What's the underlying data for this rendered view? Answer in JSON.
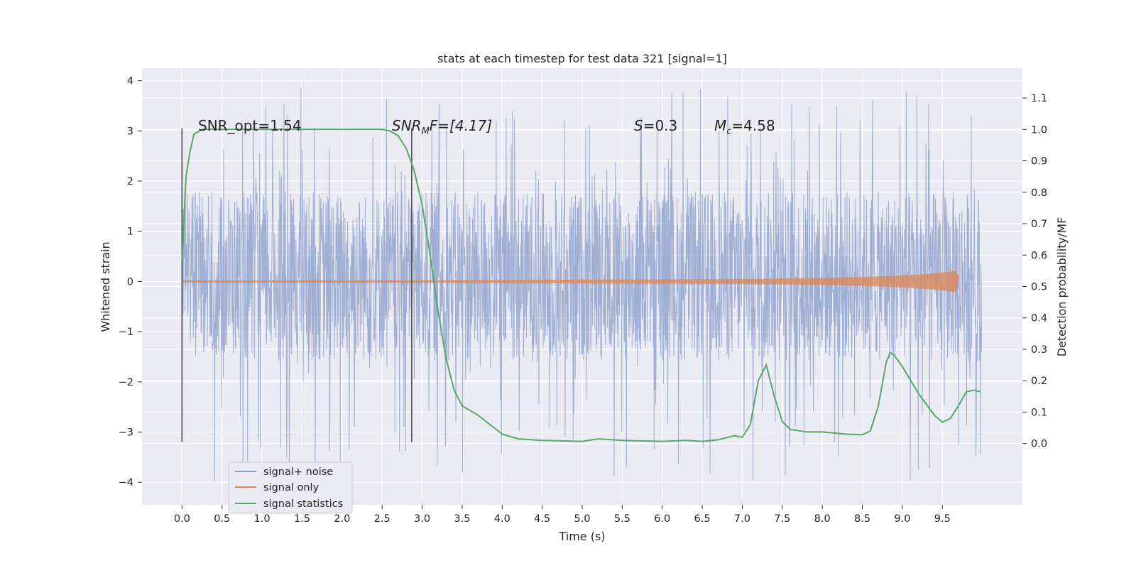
{
  "chart_data": {
    "type": "line",
    "title": "stats at each timestep for test data 321 [signal=1]",
    "xlabel": "Time (s)",
    "ylabel_left": "Whitened strain",
    "ylabel_right": "Detection probability/MF",
    "xlim": [
      -0.5,
      10.5
    ],
    "ylim_left": [
      -4.45,
      4.25
    ],
    "ylim_right": [
      -0.195,
      1.195
    ],
    "x_ticks": [
      0.0,
      0.5,
      1.0,
      1.5,
      2.0,
      2.5,
      3.0,
      3.5,
      4.0,
      4.5,
      5.0,
      5.5,
      6.0,
      6.5,
      7.0,
      7.5,
      8.0,
      8.5,
      9.0,
      9.5
    ],
    "x_tick_labels": [
      "0.0",
      "0.5",
      "1.0",
      "1.5",
      "2.0",
      "2.5",
      "3.0",
      "3.5",
      "4.0",
      "4.5",
      "5.0",
      "5.5",
      "6.0",
      "6.5",
      "7.0",
      "7.5",
      "8.0",
      "8.5",
      "9.0",
      "9.5"
    ],
    "y_left_ticks": [
      4,
      3,
      2,
      1,
      0,
      -1,
      -2,
      -3,
      -4
    ],
    "y_left_tick_labels": [
      "4",
      "3",
      "2",
      "1",
      "0",
      "−1",
      "−2",
      "−3",
      "−4"
    ],
    "y_right_ticks": [
      1.1,
      1.0,
      0.9,
      0.8,
      0.7,
      0.6,
      0.5,
      0.4,
      0.3,
      0.2,
      0.1,
      0.0
    ],
    "y_right_tick_labels": [
      "1.1",
      "1.0",
      "0.9",
      "0.8",
      "0.7",
      "0.6",
      "0.5",
      "0.4",
      "0.3",
      "0.2",
      "0.1",
      "0.0"
    ],
    "grid": true,
    "legend_position": "lower-left",
    "legend": [
      {
        "name": "signal+ noise",
        "color": "#8c9fcb"
      },
      {
        "name": "signal only",
        "color": "#dd8452"
      },
      {
        "name": "signal statistics",
        "color": "#55a868"
      }
    ],
    "annotations": {
      "snr_opt": "SNR_opt=1.54",
      "snr_mf": {
        "main": "SNR",
        "sub": "M",
        "rest": "F=[4.17]"
      },
      "s": {
        "main": "S",
        "rest": "=0.3"
      },
      "mc": {
        "main": "M",
        "sub": "c",
        "rest": "=4.58"
      }
    },
    "vertical_markers": [
      {
        "x": 0.0,
        "ymin": -3.2,
        "ymax": 3.05
      },
      {
        "x": 2.87,
        "ymin": -3.2,
        "ymax": 3.05
      }
    ],
    "noise": {
      "x_range": [
        0.0,
        9.99
      ],
      "typical_band": [
        -1.6,
        1.8
      ],
      "peak_max": 3.9,
      "peak_min": -4.05
    },
    "signal_only": {
      "x": [
        0.0,
        2.0,
        4.0,
        6.0,
        7.0,
        8.0,
        8.5,
        9.0,
        9.3,
        9.5,
        9.6,
        9.65,
        9.7
      ],
      "amplitude": [
        0.02,
        0.02,
        0.03,
        0.04,
        0.05,
        0.07,
        0.09,
        0.12,
        0.15,
        0.18,
        0.2,
        0.22,
        0.12
      ]
    },
    "signal_statistics": {
      "x": [
        0.0,
        0.05,
        0.1,
        0.15,
        0.25,
        0.5,
        1.0,
        1.5,
        2.0,
        2.5,
        2.6,
        2.7,
        2.8,
        2.9,
        3.0,
        3.1,
        3.2,
        3.3,
        3.4,
        3.5,
        3.7,
        3.9,
        4.0,
        4.2,
        4.5,
        5.0,
        5.2,
        5.5,
        6.0,
        6.3,
        6.5,
        6.7,
        6.9,
        7.0,
        7.1,
        7.2,
        7.3,
        7.4,
        7.5,
        7.6,
        7.8,
        8.0,
        8.3,
        8.5,
        8.6,
        8.7,
        8.8,
        8.85,
        8.9,
        9.0,
        9.2,
        9.4,
        9.5,
        9.6,
        9.7,
        9.8,
        9.9,
        9.97
      ],
      "y": [
        0.58,
        0.85,
        0.93,
        0.985,
        1.0,
        1.0,
        1.0,
        1.0,
        1.0,
        1.0,
        0.995,
        0.98,
        0.94,
        0.87,
        0.76,
        0.6,
        0.42,
        0.27,
        0.17,
        0.12,
        0.09,
        0.05,
        0.03,
        0.015,
        0.01,
        0.007,
        0.015,
        0.01,
        0.007,
        0.01,
        0.007,
        0.012,
        0.025,
        0.02,
        0.06,
        0.2,
        0.25,
        0.15,
        0.07,
        0.045,
        0.037,
        0.037,
        0.03,
        0.028,
        0.04,
        0.12,
        0.26,
        0.29,
        0.28,
        0.245,
        0.16,
        0.09,
        0.068,
        0.08,
        0.12,
        0.165,
        0.17,
        0.165
      ]
    }
  }
}
